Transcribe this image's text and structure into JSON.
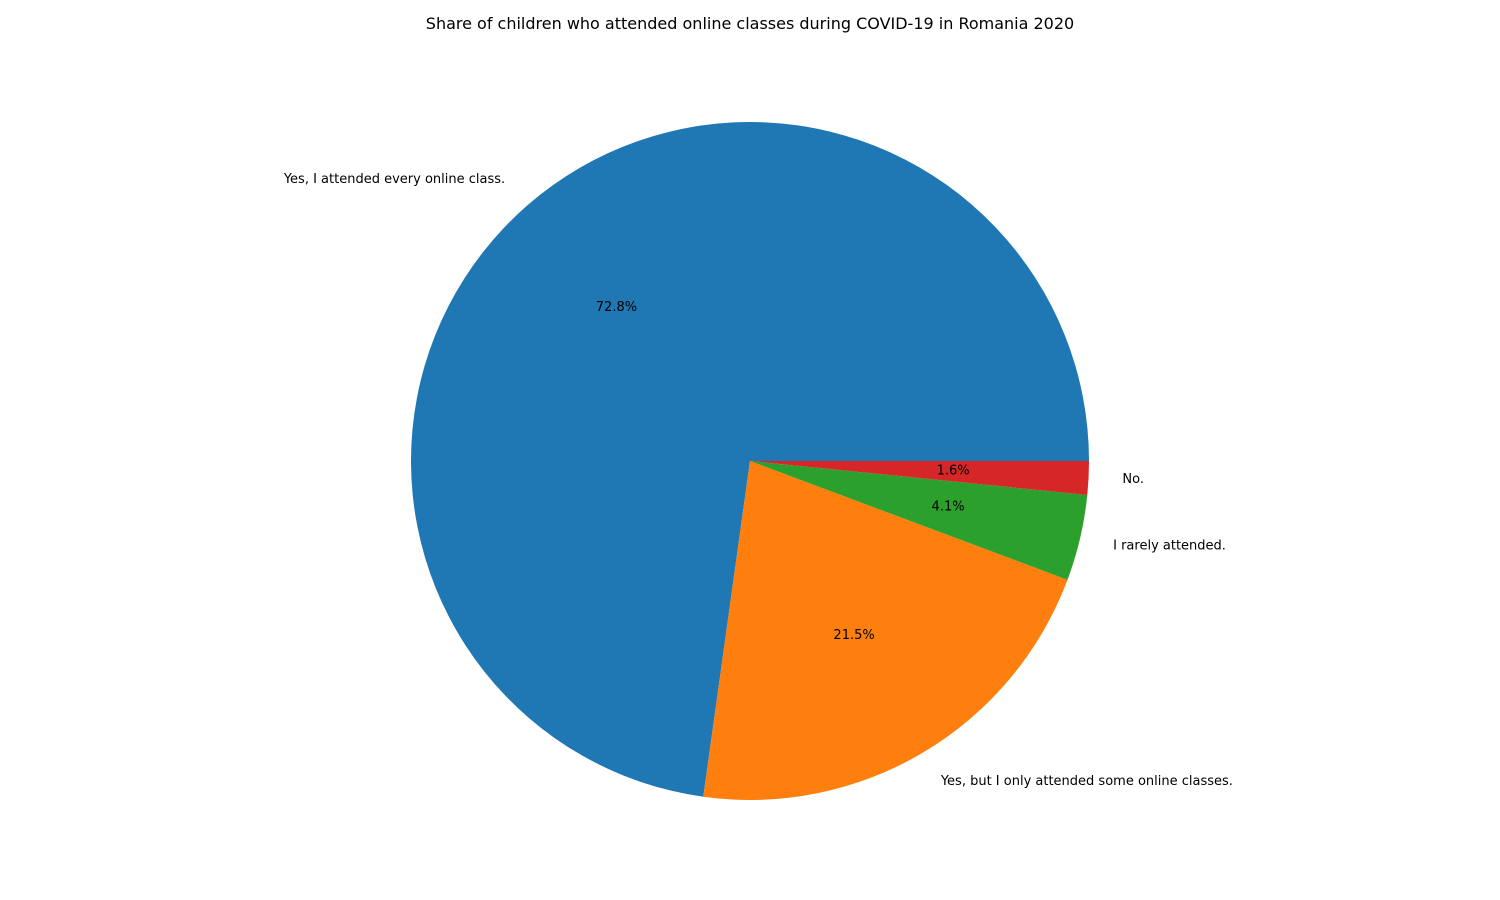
{
  "chart_data": {
    "type": "pie",
    "title": "Share of children who attended online classes during COVID-19 in Romania 2020",
    "start_angle_deg": 0,
    "direction": "counterclockwise",
    "slices": [
      {
        "label": "Yes, I attended every online class.",
        "value": 72.8,
        "pct_label": "72.8%",
        "color": "#1f77b4"
      },
      {
        "label": "Yes, but I only attended some online classes.",
        "value": 21.5,
        "pct_label": "21.5%",
        "color": "#ff7f0e"
      },
      {
        "label": "I rarely attended.",
        "value": 4.1,
        "pct_label": "4.1%",
        "color": "#2ca02c"
      },
      {
        "label": "No.",
        "value": 1.6,
        "pct_label": "1.6%",
        "color": "#d62728"
      }
    ]
  }
}
